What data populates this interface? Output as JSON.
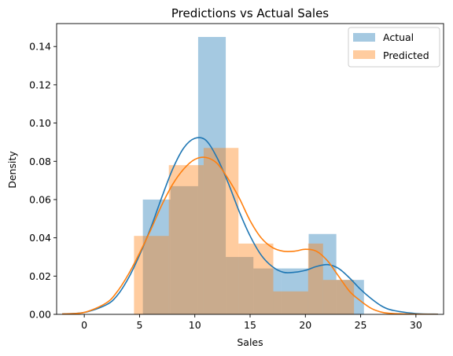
{
  "chart_data": {
    "type": "bar",
    "title": "Predictions vs Actual Sales",
    "xlabel": "Sales",
    "ylabel": "Density",
    "xlim": [
      -2.5,
      32.5
    ],
    "ylim": [
      0,
      0.152
    ],
    "xticks": [
      0,
      5,
      10,
      15,
      20,
      25,
      30
    ],
    "yticks": [
      0.0,
      0.02,
      0.04,
      0.06,
      0.08,
      0.1,
      0.12,
      0.14
    ],
    "ytick_labels": [
      "0.00",
      "0.02",
      "0.04",
      "0.06",
      "0.08",
      "0.10",
      "0.12",
      "0.14"
    ],
    "legend_position": "top-right",
    "series": [
      {
        "name": "Actual",
        "color": "#1f77b4",
        "bin_edges": [
          5.3,
          7.8,
          10.3,
          12.8,
          15.3,
          17.8,
          20.3,
          22.8,
          25.3
        ],
        "heights": [
          0.06,
          0.067,
          0.145,
          0.03,
          0.024,
          0.024,
          0.042,
          0.018
        ],
        "kde_x": [
          -2,
          0,
          2,
          3,
          4,
          5,
          6,
          7,
          8,
          9,
          10,
          11,
          12,
          13,
          14,
          15,
          16,
          17,
          18,
          19,
          20,
          21,
          22,
          23,
          24,
          25,
          26,
          27,
          28,
          30,
          32
        ],
        "kde_y": [
          0.0002,
          0.001,
          0.005,
          0.01,
          0.019,
          0.031,
          0.045,
          0.061,
          0.076,
          0.087,
          0.092,
          0.091,
          0.082,
          0.069,
          0.054,
          0.041,
          0.031,
          0.025,
          0.022,
          0.022,
          0.023,
          0.025,
          0.026,
          0.024,
          0.019,
          0.013,
          0.008,
          0.004,
          0.002,
          0.0004,
          0.0001
        ]
      },
      {
        "name": "Predicted",
        "color": "#ff7f0e",
        "bin_edges": [
          4.5,
          7.7,
          10.8,
          14.0,
          17.2,
          20.4,
          23.6,
          26.8
        ],
        "heights": [
          0.041,
          0.078,
          0.087,
          0.037,
          0.033,
          0.037,
          0.018
        ],
        "bin_edges_full": [
          4.5,
          7.65,
          10.8,
          13.95,
          17.1,
          20.25,
          21.6,
          24.4
        ],
        "heights_full": [
          0.041,
          0.078,
          0.087,
          0.037,
          0.012,
          0.037,
          0.018
        ],
        "kde_x": [
          -2,
          0,
          2,
          3,
          4,
          5,
          6,
          7,
          8,
          9,
          10,
          11,
          12,
          13,
          14,
          15,
          16,
          17,
          18,
          19,
          20,
          21,
          22,
          23,
          24,
          25,
          26,
          27,
          28,
          30,
          32
        ],
        "kde_y": [
          0.0002,
          0.001,
          0.006,
          0.012,
          0.021,
          0.032,
          0.044,
          0.057,
          0.068,
          0.076,
          0.081,
          0.082,
          0.079,
          0.071,
          0.061,
          0.049,
          0.04,
          0.035,
          0.033,
          0.033,
          0.034,
          0.033,
          0.028,
          0.02,
          0.012,
          0.007,
          0.003,
          0.001,
          0.0004,
          0.0001,
          0.0
        ]
      }
    ]
  }
}
